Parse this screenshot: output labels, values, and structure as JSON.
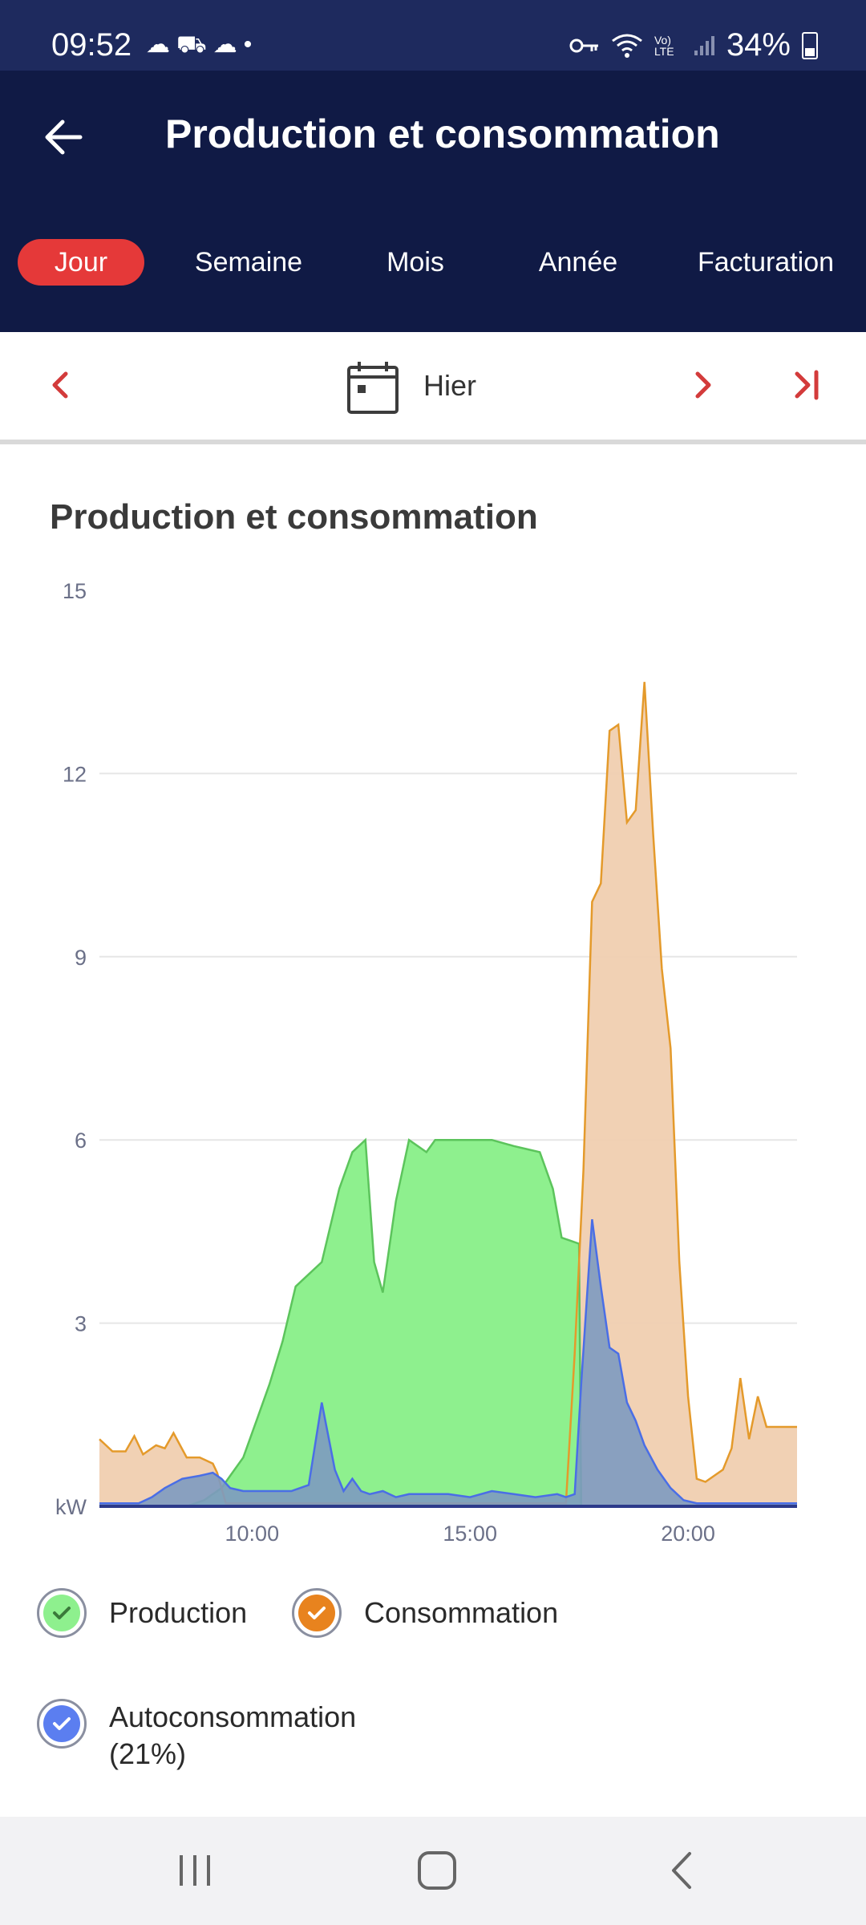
{
  "status": {
    "time": "09:52",
    "battery": "34%",
    "left_icons": [
      "cloud-icon",
      "car-sync-icon",
      "cloud-icon",
      "dot-icon"
    ],
    "right_icons": [
      "vpn-key-icon",
      "wifi-icon",
      "volte-icon",
      "signal-icon",
      "battery-icon"
    ],
    "volte": "Vo) LTE"
  },
  "appbar": {
    "title": "Production et consommation",
    "back_icon": "arrow-left-icon"
  },
  "tabs": [
    {
      "label": "Jour",
      "active": true
    },
    {
      "label": "Semaine",
      "active": false
    },
    {
      "label": "Mois",
      "active": false
    },
    {
      "label": "Année",
      "active": false
    },
    {
      "label": "Facturation",
      "active": false
    }
  ],
  "datebar": {
    "label": "Hier",
    "prev_icon": "chevron-left-icon",
    "next_icon": "chevron-right-icon",
    "last_icon": "skip-to-end-icon",
    "calendar_icon": "calendar-icon"
  },
  "card": {
    "title": "Production et consommation"
  },
  "colors": {
    "production_fill": "#8ef08e",
    "production_line": "#5cc45c",
    "consumption_fill": "#f0cfb0",
    "consumption_line": "#e49a2b",
    "selfcons_fill": "#7d9ac0",
    "selfcons_line": "#4a6ee6",
    "tab_active": "#e53939",
    "appbar": "#101a45"
  },
  "chart_data": {
    "type": "area",
    "ylabel": "kW",
    "ylim": [
      0,
      15
    ],
    "yticks": [
      "15",
      "12",
      "9",
      "6",
      "3"
    ],
    "xlim_hours": [
      6.5,
      22.5
    ],
    "xticks": [
      "10:00",
      "15:00",
      "20:00"
    ],
    "xtick_hours": [
      10,
      15,
      20
    ],
    "grid": true,
    "series": [
      {
        "name": "Consommation",
        "x": [
          6.5,
          6.8,
          7.1,
          7.3,
          7.5,
          7.8,
          8.0,
          8.2,
          8.5,
          8.8,
          9.1,
          9.2,
          9.4,
          9.6,
          10.0,
          11.0,
          12.0,
          13.0,
          14.0,
          15.0,
          16.0,
          17.0,
          17.2,
          17.4,
          17.6,
          17.8,
          18.0,
          18.2,
          18.4,
          18.6,
          18.8,
          19.0,
          19.2,
          19.4,
          19.6,
          19.8,
          20.0,
          20.2,
          20.4,
          20.6,
          20.8,
          21.0,
          21.2,
          21.4,
          21.6,
          21.8,
          22.0,
          22.2,
          22.3,
          22.5
        ],
        "values": [
          1.1,
          0.9,
          0.9,
          1.15,
          0.85,
          1.0,
          0.95,
          1.2,
          0.8,
          0.8,
          0.7,
          0.55,
          0.05,
          0.05,
          0.05,
          0.05,
          0.05,
          0.05,
          0.05,
          0.05,
          0.05,
          0.05,
          0.05,
          2.5,
          5.5,
          9.9,
          10.2,
          12.7,
          12.8,
          11.2,
          11.4,
          13.5,
          11.0,
          8.8,
          7.5,
          4.0,
          1.8,
          0.45,
          0.4,
          0.5,
          0.6,
          0.95,
          2.1,
          1.1,
          1.8,
          1.3,
          1.3,
          1.3,
          1.3,
          1.3
        ]
      },
      {
        "name": "Production",
        "x": [
          6.5,
          8.5,
          8.9,
          9.3,
          9.5,
          9.8,
          10.1,
          10.4,
          10.7,
          11.0,
          11.3,
          11.6,
          12.0,
          12.3,
          12.6,
          12.8,
          13.0,
          13.3,
          13.6,
          14.0,
          14.2,
          14.5,
          15.0,
          15.5,
          16.0,
          16.3,
          16.6,
          16.9,
          17.1,
          17.3,
          17.5,
          17.55,
          18.0,
          22.5
        ],
        "values": [
          0,
          0,
          0.1,
          0.3,
          0.5,
          0.8,
          1.4,
          2.0,
          2.7,
          3.6,
          3.8,
          4.0,
          5.2,
          5.8,
          6.0,
          4.0,
          3.5,
          5.0,
          6.0,
          5.8,
          6.0,
          6.0,
          6.0,
          6.0,
          5.9,
          5.85,
          5.8,
          5.2,
          4.4,
          4.35,
          4.3,
          0,
          0,
          0
        ]
      },
      {
        "name": "Autoconsommation",
        "legend_suffix": "(21%)",
        "x": [
          6.5,
          7.4,
          7.7,
          8.0,
          8.4,
          8.8,
          9.1,
          9.3,
          9.5,
          9.8,
          10.5,
          10.9,
          11.3,
          11.6,
          11.9,
          12.1,
          12.3,
          12.5,
          12.7,
          13.0,
          13.3,
          13.6,
          14.0,
          14.5,
          15.0,
          15.5,
          16.0,
          16.5,
          17.0,
          17.2,
          17.4,
          17.55,
          17.8,
          18.0,
          18.2,
          18.4,
          18.6,
          18.8,
          19.0,
          19.3,
          19.6,
          19.9,
          20.2,
          22.5
        ],
        "values": [
          0.05,
          0.05,
          0.15,
          0.3,
          0.45,
          0.5,
          0.55,
          0.45,
          0.3,
          0.25,
          0.25,
          0.25,
          0.35,
          1.7,
          0.6,
          0.25,
          0.45,
          0.25,
          0.2,
          0.25,
          0.15,
          0.2,
          0.2,
          0.2,
          0.15,
          0.25,
          0.2,
          0.15,
          0.2,
          0.15,
          0.2,
          2.0,
          4.7,
          3.6,
          2.6,
          2.5,
          1.7,
          1.4,
          1.0,
          0.6,
          0.3,
          0.1,
          0.05,
          0.05
        ]
      }
    ],
    "legend": [
      {
        "label": "Production",
        "checked": true,
        "color": "#8ef08e",
        "check_color": "#3a7a3a"
      },
      {
        "label": "Consommation",
        "checked": true,
        "color": "#e8831e",
        "check_color": "#ffffff"
      },
      {
        "label": "Autoconsommation",
        "sublabel": "(21%)",
        "checked": true,
        "color": "#5b7ef0",
        "check_color": "#ffffff"
      }
    ]
  },
  "navbar": {
    "icons": [
      "recent-apps-icon",
      "home-icon",
      "back-icon"
    ]
  }
}
